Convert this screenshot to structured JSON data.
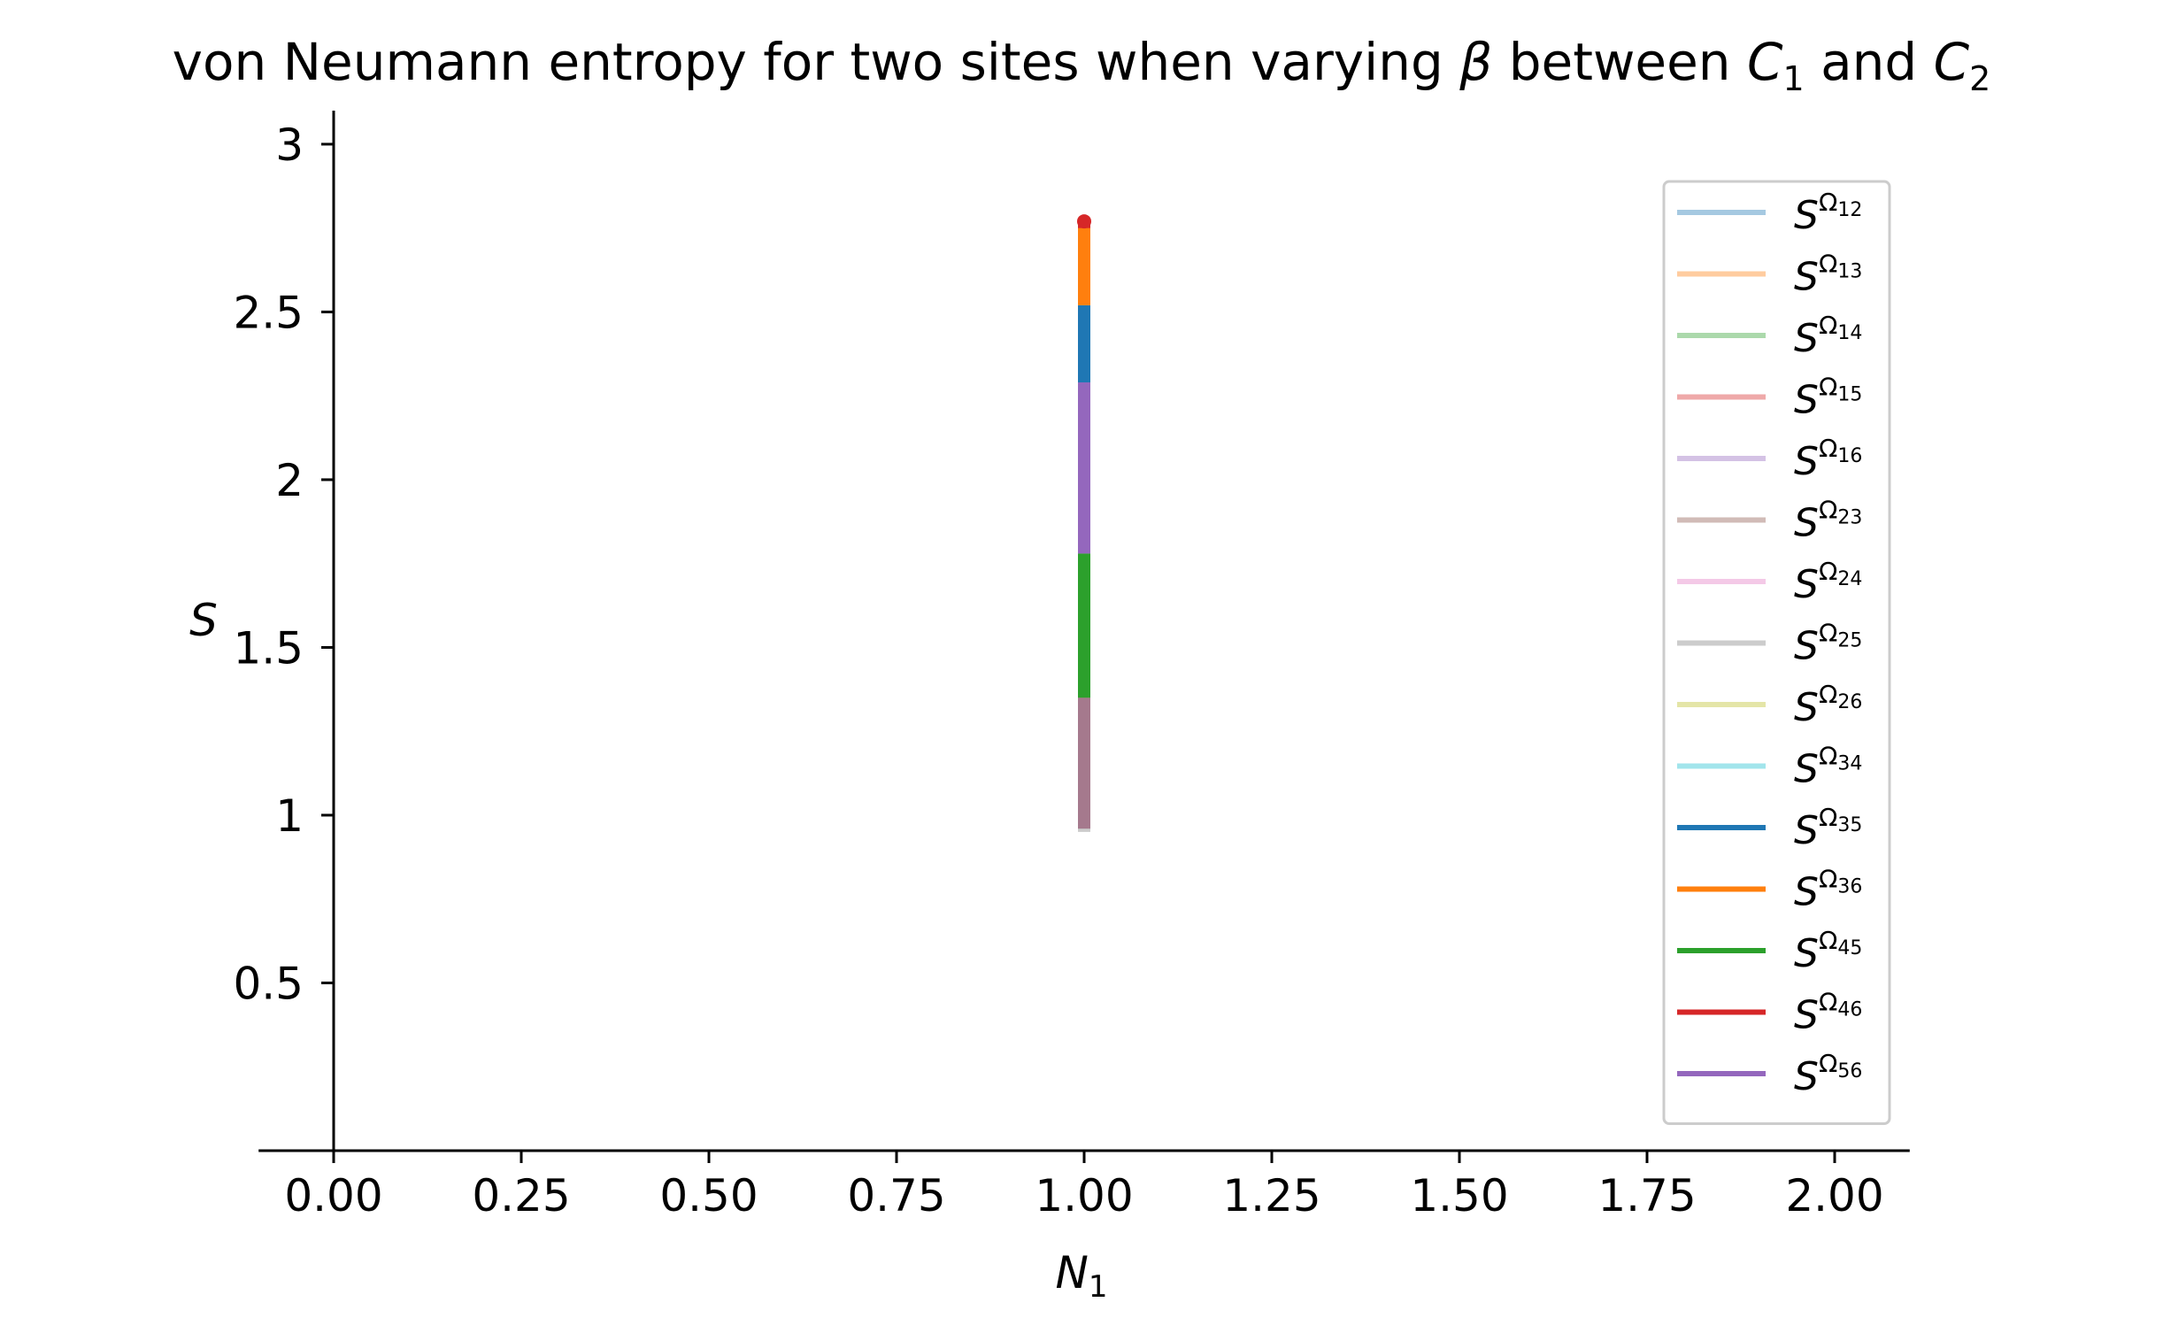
{
  "chart_data": {
    "type": "line",
    "title_parts": [
      {
        "text": "von Neumann entropy for two sites when varying ",
        "italic": false
      },
      {
        "text": "β",
        "italic": true
      },
      {
        "text": " between ",
        "italic": false
      },
      {
        "text": "C",
        "italic": true
      },
      {
        "text": "1",
        "sub": true
      },
      {
        "text": " and ",
        "italic": false
      },
      {
        "text": "C",
        "italic": true
      },
      {
        "text": "2",
        "sub": true
      }
    ],
    "xlabel": {
      "main": "N",
      "sub": "1"
    },
    "ylabel": "S",
    "xlim": [
      -0.1,
      2.1
    ],
    "ylim": [
      0,
      3.1
    ],
    "x_ticks": [
      {
        "value": 0.0,
        "label": "0.00"
      },
      {
        "value": 0.25,
        "label": "0.25"
      },
      {
        "value": 0.5,
        "label": "0.50"
      },
      {
        "value": 0.75,
        "label": "0.75"
      },
      {
        "value": 1.0,
        "label": "1.00"
      },
      {
        "value": 1.25,
        "label": "1.25"
      },
      {
        "value": 1.5,
        "label": "1.50"
      },
      {
        "value": 1.75,
        "label": "1.75"
      },
      {
        "value": 2.0,
        "label": "2.00"
      }
    ],
    "y_ticks": [
      {
        "value": 0.5,
        "label": "0.5"
      },
      {
        "value": 1.0,
        "label": "1"
      },
      {
        "value": 1.5,
        "label": "1.5"
      },
      {
        "value": 2.0,
        "label": "2"
      },
      {
        "value": 2.5,
        "label": "2.5"
      },
      {
        "value": 3.0,
        "label": "3"
      }
    ],
    "grid": false,
    "legend_position": "right",
    "series": [
      {
        "name": "S^Ω12",
        "base": "S",
        "sup": "Ω",
        "sub": "12",
        "color": "#1f77b4",
        "alpha": 0.4,
        "x": [
          1.0,
          1.0
        ],
        "y": [
          0.96,
          1.35
        ]
      },
      {
        "name": "S^Ω13",
        "base": "S",
        "sup": "Ω",
        "sub": "13",
        "color": "#ff7f0e",
        "alpha": 0.4,
        "x": [
          1.0,
          1.0
        ],
        "y": [
          1.35,
          1.78
        ]
      },
      {
        "name": "S^Ω14",
        "base": "S",
        "sup": "Ω",
        "sub": "14",
        "color": "#2ca02c",
        "alpha": 0.4,
        "x": [
          1.0,
          1.0
        ],
        "y": [
          1.35,
          1.78
        ]
      },
      {
        "name": "S^Ω15",
        "base": "S",
        "sup": "Ω",
        "sub": "15",
        "color": "#d62728",
        "alpha": 0.4,
        "x": [
          1.0,
          1.0
        ],
        "y": [
          0.96,
          1.35
        ]
      },
      {
        "name": "S^Ω16",
        "base": "S",
        "sup": "Ω",
        "sub": "16",
        "color": "#9467bd",
        "alpha": 0.4,
        "x": [
          1.0,
          1.0
        ],
        "y": [
          1.78,
          2.29
        ]
      },
      {
        "name": "S^Ω23",
        "base": "S",
        "sup": "Ω",
        "sub": "23",
        "color": "#8c564b",
        "alpha": 0.4,
        "x": [
          1.0,
          1.0
        ],
        "y": [
          0.96,
          1.35
        ]
      },
      {
        "name": "S^Ω24",
        "base": "S",
        "sup": "Ω",
        "sub": "24",
        "color": "#e377c2",
        "alpha": 0.4,
        "x": [
          1.0,
          1.0
        ],
        "y": [
          0.96,
          1.35
        ]
      },
      {
        "name": "S^Ω25",
        "base": "S",
        "sup": "Ω",
        "sub": "25",
        "color": "#7f7f7f",
        "alpha": 0.4,
        "x": [
          1.0,
          1.0
        ],
        "y": [
          0.95,
          1.35
        ]
      },
      {
        "name": "S^Ω26",
        "base": "S",
        "sup": "Ω",
        "sub": "26",
        "color": "#bcbd22",
        "alpha": 0.4,
        "x": [
          1.0,
          1.0
        ],
        "y": [
          2.43,
          2.52
        ]
      },
      {
        "name": "S^Ω34",
        "base": "S",
        "sup": "Ω",
        "sub": "34",
        "color": "#17becf",
        "alpha": 0.4,
        "x": [
          1.0,
          1.0
        ],
        "y": [
          2.43,
          2.52
        ]
      },
      {
        "name": "S^Ω35",
        "base": "S",
        "sup": "Ω",
        "sub": "35",
        "color": "#1f77b4",
        "alpha": 1.0,
        "x": [
          1.0,
          1.0
        ],
        "y": [
          2.29,
          2.52
        ]
      },
      {
        "name": "S^Ω36",
        "base": "S",
        "sup": "Ω",
        "sub": "36",
        "color": "#ff7f0e",
        "alpha": 1.0,
        "x": [
          1.0,
          1.0
        ],
        "y": [
          2.52,
          2.76
        ]
      },
      {
        "name": "S^Ω45",
        "base": "S",
        "sup": "Ω",
        "sub": "45",
        "color": "#2ca02c",
        "alpha": 1.0,
        "x": [
          1.0,
          1.0
        ],
        "y": [
          1.35,
          1.78
        ]
      },
      {
        "name": "S^Ω46",
        "base": "S",
        "sup": "Ω",
        "sub": "46",
        "color": "#d62728",
        "alpha": 1.0,
        "x": [
          1.0,
          1.0
        ],
        "y": [
          2.75,
          2.77
        ]
      },
      {
        "name": "S^Ω56",
        "base": "S",
        "sup": "Ω",
        "sub": "56",
        "color": "#9467bd",
        "alpha": 1.0,
        "x": [
          1.0,
          1.0
        ],
        "y": [
          1.78,
          2.29
        ]
      }
    ]
  }
}
